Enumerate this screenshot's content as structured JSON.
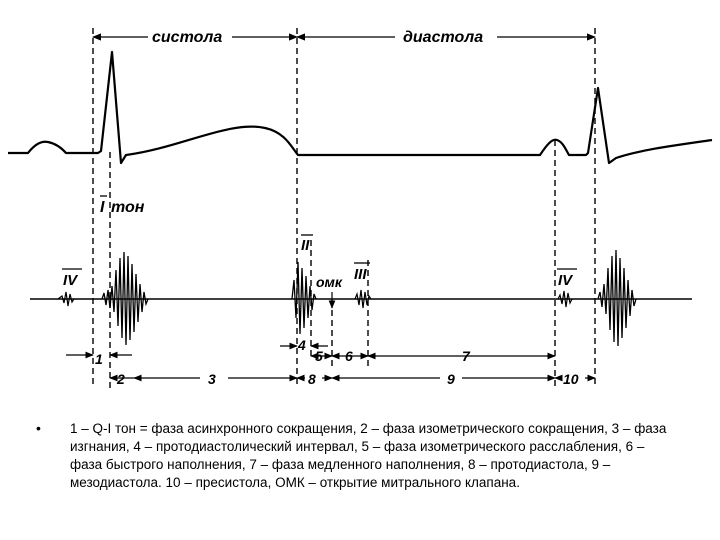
{
  "labels": {
    "systole": "систола",
    "diastole": "диастола",
    "tone1_roman": "I",
    "tone1_word": "тон",
    "tone2": "II",
    "omk": "омк",
    "tone3": "III",
    "tone4_left": "IV",
    "tone4_right": "IV"
  },
  "intervals": {
    "n1": "1",
    "n2": "2",
    "n3": "3",
    "n4": "4",
    "n5": "5",
    "n6": "6",
    "n7": "7",
    "n8": "8",
    "n9": "9",
    "n10": "10"
  },
  "caption": {
    "bullet": "•",
    "text": "1 – Q-I тон = фаза асинхронного сокращения, 2 – фаза изометрического сокращения, 3 – фаза изгнания, 4 – протодиастолический интервал, 5 – фаза изометрического расслабления, 6 – фаза быстрого наполнения, 7 – фаза медленного наполнения, 8 – протодиастола, 9 – мезодиастола. 10 – пресистола, ОМК – открытие митрального клапана."
  }
}
